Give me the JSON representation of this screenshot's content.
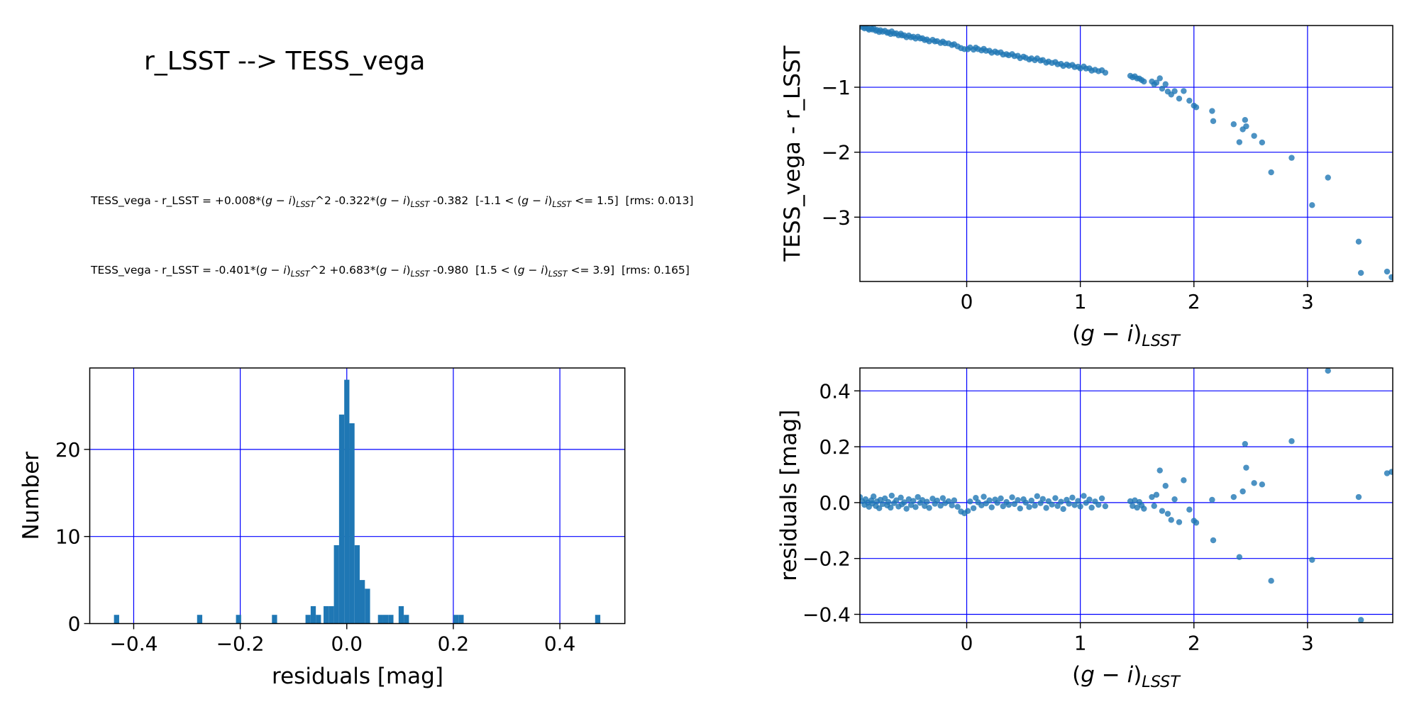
{
  "title": "r_LSST --> TESS_vega",
  "equations": [
    "TESS_vega - r_LSST = +0.008*(g − i)_LSST^2 -0.322*(g − i)_LSST -0.382  [-1.1 < (g − i)_LSST <= 1.5]  [rms: 0.013]",
    "TESS_vega - r_LSST = -0.401*(g − i)_LSST^2 +0.683*(g − i)_LSST -0.980  [1.5 < (g − i)_LSST <= 3.9]  [rms: 0.165]"
  ],
  "fit": {
    "target": "TESS_vega - r_LSST",
    "variable": "(g − i)_LSST",
    "pieces": [
      {
        "c2": 0.008,
        "c1": -0.322,
        "c0": -0.382,
        "domain": [
          -1.1,
          1.5
        ],
        "rms": 0.013
      },
      {
        "c2": -0.401,
        "c1": 0.683,
        "c0": -0.98,
        "domain": [
          1.5,
          3.9
        ],
        "rms": 0.165
      }
    ]
  },
  "colors": {
    "marker": "#1f77b4",
    "marker_opacity": 0.8,
    "bar": "#1f77b4",
    "grid": "#0000ff",
    "frame": "#000000",
    "text": "#000000",
    "background": "#ffffff"
  },
  "chart_data": [
    {
      "id": "tess-vs-color",
      "type": "scatter",
      "title": "",
      "xlabel": "(g − i)_LSST",
      "ylabel": "TESS_vega - r_LSST",
      "xlim": [
        -0.94,
        3.75
      ],
      "ylim": [
        -3.99,
        -0.05
      ],
      "xticks": {
        "values": [
          0,
          1,
          2,
          3
        ],
        "labels": [
          "0",
          "1",
          "2",
          "3"
        ]
      },
      "yticks": {
        "values": [
          -1,
          -2,
          -3
        ],
        "labels": [
          "−1",
          "−2",
          "−3"
        ]
      },
      "grid": true,
      "legend": false,
      "y_rule": "y = piecewise quadratic fit(x) + residual; coefficients in fit.pieces",
      "columns": [
        "(g-i)_LSST",
        "residual_mag"
      ],
      "points": [
        [
          -0.94,
          0.02
        ],
        [
          -0.92,
          0.005
        ],
        [
          -0.9,
          -0.008
        ],
        [
          -0.89,
          0.012
        ],
        [
          -0.87,
          0.0
        ],
        [
          -0.86,
          -0.015
        ],
        [
          -0.84,
          0.008
        ],
        [
          -0.83,
          -0.003
        ],
        [
          -0.82,
          0.022
        ],
        [
          -0.8,
          -0.012
        ],
        [
          -0.79,
          0.004
        ],
        [
          -0.77,
          -0.02
        ],
        [
          -0.76,
          0.01
        ],
        [
          -0.74,
          -0.005
        ],
        [
          -0.72,
          0.015
        ],
        [
          -0.7,
          -0.01
        ],
        [
          -0.69,
          0.002
        ],
        [
          -0.67,
          -0.018
        ],
        [
          -0.66,
          0.025
        ],
        [
          -0.64,
          -0.002
        ],
        [
          -0.62,
          0.008
        ],
        [
          -0.6,
          -0.014
        ],
        [
          -0.58,
          0.018
        ],
        [
          -0.57,
          -0.006
        ],
        [
          -0.55,
          0.001
        ],
        [
          -0.53,
          -0.022
        ],
        [
          -0.51,
          0.012
        ],
        [
          -0.49,
          -0.009
        ],
        [
          -0.47,
          0.006
        ],
        [
          -0.45,
          -0.016
        ],
        [
          -0.43,
          0.02
        ],
        [
          -0.41,
          -0.001
        ],
        [
          -0.39,
          0.009
        ],
        [
          -0.37,
          -0.012
        ],
        [
          -0.35,
          0.003
        ],
        [
          -0.33,
          -0.019
        ],
        [
          -0.3,
          0.014
        ],
        [
          -0.28,
          -0.004
        ],
        [
          -0.26,
          0.007
        ],
        [
          -0.23,
          -0.011
        ],
        [
          -0.21,
          0.016
        ],
        [
          -0.19,
          -0.002
        ],
        [
          -0.16,
          0.005
        ],
        [
          -0.13,
          -0.01
        ],
        [
          -0.11,
          0.008
        ],
        [
          -0.08,
          -0.015
        ],
        [
          -0.05,
          -0.032
        ],
        [
          -0.02,
          -0.038
        ],
        [
          0.01,
          -0.03
        ],
        [
          0.03,
          0.004
        ],
        [
          0.06,
          -0.02
        ],
        [
          0.08,
          0.017
        ],
        [
          0.1,
          0.001
        ],
        [
          0.13,
          -0.01
        ],
        [
          0.15,
          0.021
        ],
        [
          0.17,
          -0.003
        ],
        [
          0.2,
          0.008
        ],
        [
          0.22,
          -0.017
        ],
        [
          0.25,
          0.011
        ],
        [
          0.27,
          -0.001
        ],
        [
          0.3,
          0.015
        ],
        [
          0.32,
          -0.013
        ],
        [
          0.35,
          0.002
        ],
        [
          0.37,
          -0.008
        ],
        [
          0.4,
          0.019
        ],
        [
          0.42,
          -0.005
        ],
        [
          0.45,
          0.009
        ],
        [
          0.47,
          -0.021
        ],
        [
          0.5,
          0.012
        ],
        [
          0.52,
          0.0
        ],
        [
          0.55,
          -0.016
        ],
        [
          0.57,
          0.007
        ],
        [
          0.6,
          -0.011
        ],
        [
          0.62,
          0.023
        ],
        [
          0.65,
          -0.002
        ],
        [
          0.67,
          0.013
        ],
        [
          0.7,
          -0.019
        ],
        [
          0.72,
          0.005
        ],
        [
          0.75,
          -0.007
        ],
        [
          0.78,
          0.016
        ],
        [
          0.8,
          -0.012
        ],
        [
          0.83,
          0.003
        ],
        [
          0.85,
          -0.023
        ],
        [
          0.88,
          0.01
        ],
        [
          0.9,
          -0.004
        ],
        [
          0.93,
          0.018
        ],
        [
          0.95,
          -0.009
        ],
        [
          0.98,
          0.006
        ],
        [
          1.0,
          -0.014
        ],
        [
          1.03,
          0.024
        ],
        [
          1.05,
          -0.001
        ],
        [
          1.08,
          0.011
        ],
        [
          1.1,
          -0.018
        ],
        [
          1.13,
          0.004
        ],
        [
          1.16,
          -0.008
        ],
        [
          1.19,
          0.015
        ],
        [
          1.22,
          -0.013
        ],
        [
          1.44,
          0.005
        ],
        [
          1.46,
          -0.012
        ],
        [
          1.48,
          0.008
        ],
        [
          1.5,
          -0.018
        ],
        [
          1.52,
          0.002
        ],
        [
          1.54,
          -0.01
        ],
        [
          1.56,
          -0.022
        ],
        [
          1.63,
          0.02
        ],
        [
          1.65,
          -0.012
        ],
        [
          1.67,
          0.028
        ],
        [
          1.7,
          0.115
        ],
        [
          1.72,
          -0.03
        ],
        [
          1.75,
          0.06
        ],
        [
          1.77,
          -0.04
        ],
        [
          1.8,
          -0.062
        ],
        [
          1.83,
          0.012
        ],
        [
          1.87,
          -0.07
        ],
        [
          1.91,
          0.08
        ],
        [
          1.96,
          -0.025
        ],
        [
          2.0,
          -0.065
        ],
        [
          2.02,
          -0.072
        ],
        [
          2.16,
          0.01
        ],
        [
          2.17,
          -0.135
        ],
        [
          2.35,
          0.02
        ],
        [
          2.4,
          -0.195
        ],
        [
          2.43,
          0.04
        ],
        [
          2.45,
          0.21
        ],
        [
          2.46,
          0.125
        ],
        [
          2.53,
          0.07
        ],
        [
          2.6,
          0.065
        ],
        [
          2.68,
          -0.28
        ],
        [
          2.86,
          0.22
        ],
        [
          3.04,
          -0.205
        ],
        [
          3.18,
          0.472
        ],
        [
          3.45,
          0.02
        ],
        [
          3.47,
          -0.42
        ],
        [
          3.7,
          0.105
        ],
        [
          3.74,
          0.11
        ]
      ]
    },
    {
      "id": "residual-histogram",
      "type": "bar",
      "title": "",
      "xlabel": "residuals [mag]",
      "ylabel": "Number",
      "xlim": [
        -0.4825,
        0.522
      ],
      "ylim": [
        0,
        29.35
      ],
      "xticks": {
        "values": [
          -0.4,
          -0.2,
          0.0,
          0.2,
          0.4
        ],
        "labels": [
          "−0.4",
          "−0.2",
          "0.0",
          "0.2",
          "0.4"
        ]
      },
      "yticks": {
        "values": [
          0,
          10,
          20
        ],
        "labels": [
          "0",
          "10",
          "20"
        ]
      },
      "grid": true,
      "bin_width": 0.0097,
      "bars_columns": [
        "bin_left_edge",
        "count"
      ],
      "bars": [
        [
          -0.437,
          1
        ],
        [
          -0.281,
          1
        ],
        [
          -0.208,
          1
        ],
        [
          -0.1405,
          1
        ],
        [
          -0.0775,
          1
        ],
        [
          -0.0678,
          2
        ],
        [
          -0.0581,
          1
        ],
        [
          -0.0436,
          2
        ],
        [
          -0.0339,
          2
        ],
        [
          -0.0242,
          9
        ],
        [
          -0.0145,
          24
        ],
        [
          -0.0048,
          28
        ],
        [
          0.0049,
          23
        ],
        [
          0.0146,
          9
        ],
        [
          0.0243,
          5
        ],
        [
          0.034,
          4
        ],
        [
          0.0585,
          1
        ],
        [
          0.0682,
          1
        ],
        [
          0.0779,
          1
        ],
        [
          0.0973,
          2
        ],
        [
          0.107,
          1
        ],
        [
          0.2,
          1
        ],
        [
          0.2097,
          1
        ],
        [
          0.4662,
          1
        ]
      ]
    },
    {
      "id": "residuals-vs-color",
      "type": "scatter",
      "title": "",
      "xlabel": "(g − i)_LSST",
      "ylabel": "residuals [mag]",
      "xlim": [
        -0.94,
        3.75
      ],
      "ylim": [
        -0.43,
        0.482
      ],
      "xticks": {
        "values": [
          0,
          1,
          2,
          3
        ],
        "labels": [
          "0",
          "1",
          "2",
          "3"
        ]
      },
      "yticks": {
        "values": [
          0.4,
          0.2,
          0.0,
          -0.2,
          -0.4
        ],
        "labels": [
          "0.4",
          "0.2",
          "0.0",
          "−0.2",
          "−0.4"
        ]
      },
      "grid": true,
      "legend": false,
      "points_source": "same [x, residual] pairs as chart_data[0].points; y = residual column"
    }
  ]
}
